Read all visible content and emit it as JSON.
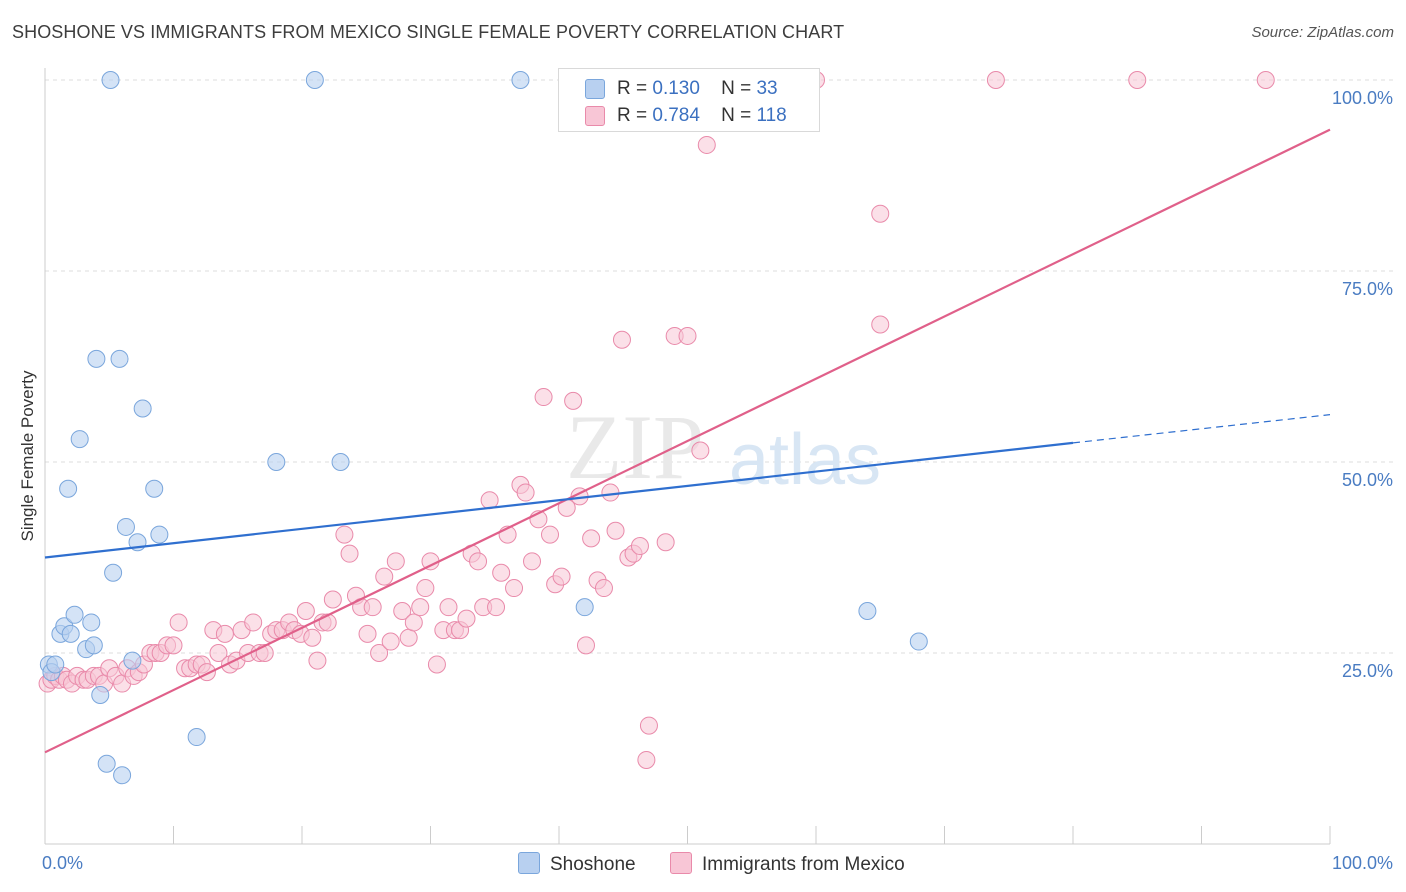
{
  "title": "SHOSHONE VS IMMIGRANTS FROM MEXICO SINGLE FEMALE POVERTY CORRELATION CHART",
  "source": "Source: ZipAtlas.com",
  "watermark": {
    "zip": "ZIP",
    "atlas": "atlas"
  },
  "legend": {
    "shoshone": {
      "r_label": "R =",
      "r_value": "0.130",
      "n_label": "N =",
      "n_value": "33"
    },
    "mexico": {
      "r_label": "R =",
      "r_value": "0.784",
      "n_label": "N =",
      "n_value": "118"
    }
  },
  "bottom_legend": {
    "shoshone": "Shoshone",
    "mexico": "Immigrants from Mexico"
  },
  "colors": {
    "shoshone_fill": "#b8d0f0",
    "shoshone_stroke": "#7aa6dc",
    "shoshone_line": "#2f6fcf",
    "mexico_fill": "#f8c6d6",
    "mexico_stroke": "#e98aaa",
    "mexico_line": "#e0608a",
    "axis_text": "#4a7cc2",
    "grid": "#dddddd"
  },
  "chart_data": {
    "type": "scatter",
    "xlabel": "",
    "ylabel": "Single Female Poverty",
    "xlim": [
      0,
      100
    ],
    "ylim": [
      0,
      100
    ],
    "x_tick_labels": [
      {
        "value": 0,
        "label": "0.0%"
      },
      {
        "value": 100,
        "label": "100.0%"
      }
    ],
    "y_tick_labels": [
      {
        "value": 25,
        "label": "25.0%"
      },
      {
        "value": 50,
        "label": "50.0%"
      },
      {
        "value": 75,
        "label": "75.0%"
      },
      {
        "value": 100,
        "label": "100.0%"
      }
    ],
    "grid": true,
    "legend_position": "top-center",
    "series": [
      {
        "name": "Shoshone",
        "trend": {
          "x0": 0,
          "y0": 37.5,
          "x1": 80,
          "y1": 52.5,
          "dash_to_x": 100,
          "dash_to_y": 56.2
        },
        "points": [
          [
            0.3,
            23.5
          ],
          [
            0.5,
            22.5
          ],
          [
            0.8,
            23.5
          ],
          [
            1.2,
            27.5
          ],
          [
            1.5,
            28.5
          ],
          [
            1.8,
            46.5
          ],
          [
            2.0,
            27.5
          ],
          [
            2.3,
            30
          ],
          [
            2.7,
            53
          ],
          [
            3.2,
            25.5
          ],
          [
            3.6,
            29
          ],
          [
            3.8,
            26
          ],
          [
            4.0,
            63.5
          ],
          [
            4.3,
            19.5
          ],
          [
            4.8,
            10.5
          ],
          [
            5.1,
            100
          ],
          [
            5.3,
            35.5
          ],
          [
            6.0,
            9
          ],
          [
            6.3,
            41.5
          ],
          [
            6.8,
            24
          ],
          [
            7.2,
            39.5
          ],
          [
            7.6,
            57
          ],
          [
            8.5,
            46.5
          ],
          [
            8.9,
            40.5
          ],
          [
            11.8,
            14
          ],
          [
            5.8,
            63.5
          ],
          [
            18.0,
            50
          ],
          [
            21.0,
            100
          ],
          [
            23.0,
            50
          ],
          [
            37.0,
            100
          ],
          [
            42.0,
            31
          ],
          [
            64.0,
            30.5
          ],
          [
            68.0,
            26.5
          ]
        ]
      },
      {
        "name": "Immigrants from Mexico",
        "trend": {
          "x0": 0,
          "y0": 12,
          "x1": 100,
          "y1": 93.5
        },
        "points": [
          [
            0.2,
            21
          ],
          [
            0.5,
            21.5
          ],
          [
            0.8,
            22
          ],
          [
            1.1,
            21.5
          ],
          [
            1.4,
            22
          ],
          [
            1.7,
            21.5
          ],
          [
            2.1,
            21
          ],
          [
            2.5,
            22
          ],
          [
            3.0,
            21.5
          ],
          [
            3.3,
            21.5
          ],
          [
            3.8,
            22
          ],
          [
            4.2,
            22
          ],
          [
            4.6,
            21
          ],
          [
            5.0,
            23
          ],
          [
            5.5,
            22
          ],
          [
            6.0,
            21
          ],
          [
            6.4,
            23
          ],
          [
            6.9,
            22
          ],
          [
            7.3,
            22.5
          ],
          [
            7.7,
            23.5
          ],
          [
            8.2,
            25
          ],
          [
            8.6,
            25
          ],
          [
            9.0,
            25
          ],
          [
            9.5,
            26
          ],
          [
            10.0,
            26
          ],
          [
            10.4,
            29
          ],
          [
            10.9,
            23
          ],
          [
            11.3,
            23
          ],
          [
            11.8,
            23.5
          ],
          [
            12.2,
            23.5
          ],
          [
            12.6,
            22.5
          ],
          [
            13.1,
            28
          ],
          [
            13.5,
            25
          ],
          [
            14.0,
            27.5
          ],
          [
            14.4,
            23.5
          ],
          [
            14.9,
            24
          ],
          [
            15.3,
            28
          ],
          [
            15.8,
            25
          ],
          [
            16.2,
            29
          ],
          [
            16.7,
            25
          ],
          [
            17.1,
            25
          ],
          [
            17.6,
            27.5
          ],
          [
            18.0,
            28
          ],
          [
            18.5,
            28
          ],
          [
            19.0,
            29
          ],
          [
            19.4,
            28
          ],
          [
            19.9,
            27.5
          ],
          [
            20.3,
            30.5
          ],
          [
            20.8,
            27
          ],
          [
            21.2,
            24
          ],
          [
            21.6,
            29
          ],
          [
            22.0,
            29
          ],
          [
            22.4,
            32
          ],
          [
            23.3,
            40.5
          ],
          [
            23.7,
            38
          ],
          [
            24.2,
            32.5
          ],
          [
            24.6,
            31
          ],
          [
            25.1,
            27.5
          ],
          [
            25.5,
            31
          ],
          [
            26.0,
            25
          ],
          [
            26.4,
            35
          ],
          [
            26.9,
            26.5
          ],
          [
            27.3,
            37
          ],
          [
            27.8,
            30.5
          ],
          [
            28.3,
            27
          ],
          [
            28.7,
            29
          ],
          [
            29.2,
            31
          ],
          [
            29.6,
            33.5
          ],
          [
            30.0,
            37
          ],
          [
            30.5,
            23.5
          ],
          [
            31.0,
            28
          ],
          [
            31.4,
            31
          ],
          [
            31.9,
            28
          ],
          [
            32.3,
            28
          ],
          [
            32.8,
            29.5
          ],
          [
            33.2,
            38
          ],
          [
            33.7,
            37
          ],
          [
            34.1,
            31
          ],
          [
            34.6,
            45
          ],
          [
            35.1,
            31
          ],
          [
            35.5,
            35.5
          ],
          [
            36.0,
            40.5
          ],
          [
            36.5,
            33.5
          ],
          [
            37.0,
            47
          ],
          [
            37.4,
            46
          ],
          [
            37.9,
            37
          ],
          [
            38.4,
            42.5
          ],
          [
            38.8,
            58.5
          ],
          [
            39.3,
            40.5
          ],
          [
            39.7,
            34
          ],
          [
            40.2,
            35
          ],
          [
            40.6,
            44
          ],
          [
            41.1,
            58
          ],
          [
            41.6,
            45.5
          ],
          [
            42.1,
            26
          ],
          [
            42.5,
            40
          ],
          [
            43.0,
            34.5
          ],
          [
            43.5,
            33.5
          ],
          [
            44.0,
            46
          ],
          [
            44.4,
            41
          ],
          [
            44.9,
            66
          ],
          [
            45.4,
            37.5
          ],
          [
            45.8,
            38
          ],
          [
            46.3,
            39
          ],
          [
            47.0,
            15.5
          ],
          [
            46.8,
            11
          ],
          [
            48.3,
            39.5
          ],
          [
            49.0,
            66.5
          ],
          [
            50.0,
            66.5
          ],
          [
            51.0,
            51.5
          ],
          [
            51.5,
            91.5
          ],
          [
            54.0,
            100
          ],
          [
            55.5,
            100
          ],
          [
            60.0,
            100
          ],
          [
            65.0,
            82.5
          ],
          [
            65.0,
            68
          ],
          [
            74.0,
            100
          ],
          [
            85.0,
            100
          ],
          [
            95.0,
            100
          ]
        ]
      }
    ]
  }
}
